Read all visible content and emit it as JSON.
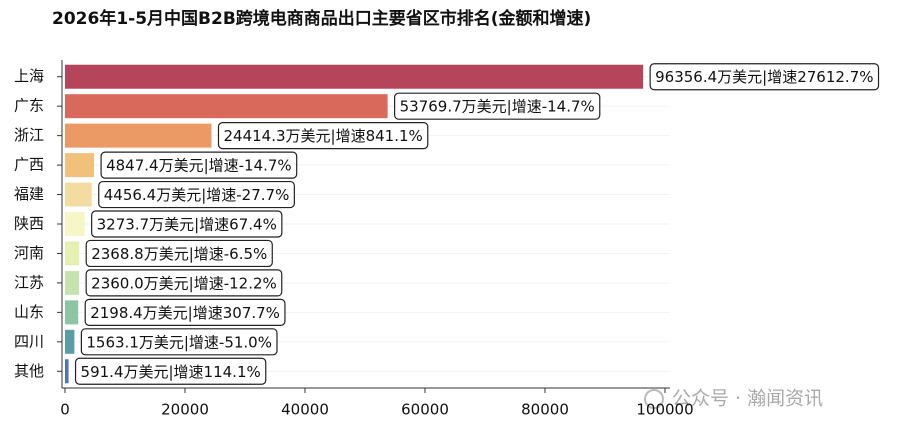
{
  "chart_data": {
    "type": "hbar",
    "title": "2026年1-5月中国B2B跨境电商商品出口主要省区市排名(金额和增速)",
    "categories": [
      "上海",
      "广东",
      "浙江",
      "广西",
      "福建",
      "陕西",
      "河南",
      "江苏",
      "山东",
      "四川",
      "其他"
    ],
    "values": [
      96356.4,
      53769.7,
      24414.3,
      4847.4,
      4456.4,
      3273.7,
      2368.8,
      2360.0,
      2198.4,
      1563.1,
      591.4
    ],
    "value_labels": [
      "96356.4万美元|增速27612.7%",
      "53769.7万美元|增速-14.7%",
      "24414.3万美元|增速841.1%",
      "4847.4万美元|增速-14.7%",
      "4456.4万美元|增速-27.7%",
      "3273.7万美元|增速67.4%",
      "2368.8万美元|增速-6.5%",
      "2360.0万美元|增速-12.2%",
      "2198.4万美元|增速307.7%",
      "1563.1万美元|增速-51.0%",
      "591.4万美元|增速114.1%"
    ],
    "colors": [
      "#b5455a",
      "#d9695b",
      "#eb9a66",
      "#f1c07b",
      "#f3dca0",
      "#f6f6c6",
      "#e6f0b2",
      "#c6e3ae",
      "#8cc5a4",
      "#5a9da4",
      "#4a78ae"
    ],
    "xlim": [
      0,
      100000
    ],
    "xticks": [
      0,
      20000,
      40000,
      60000,
      80000,
      100000
    ],
    "watermark": "公众号 · 瀚闻资讯"
  }
}
